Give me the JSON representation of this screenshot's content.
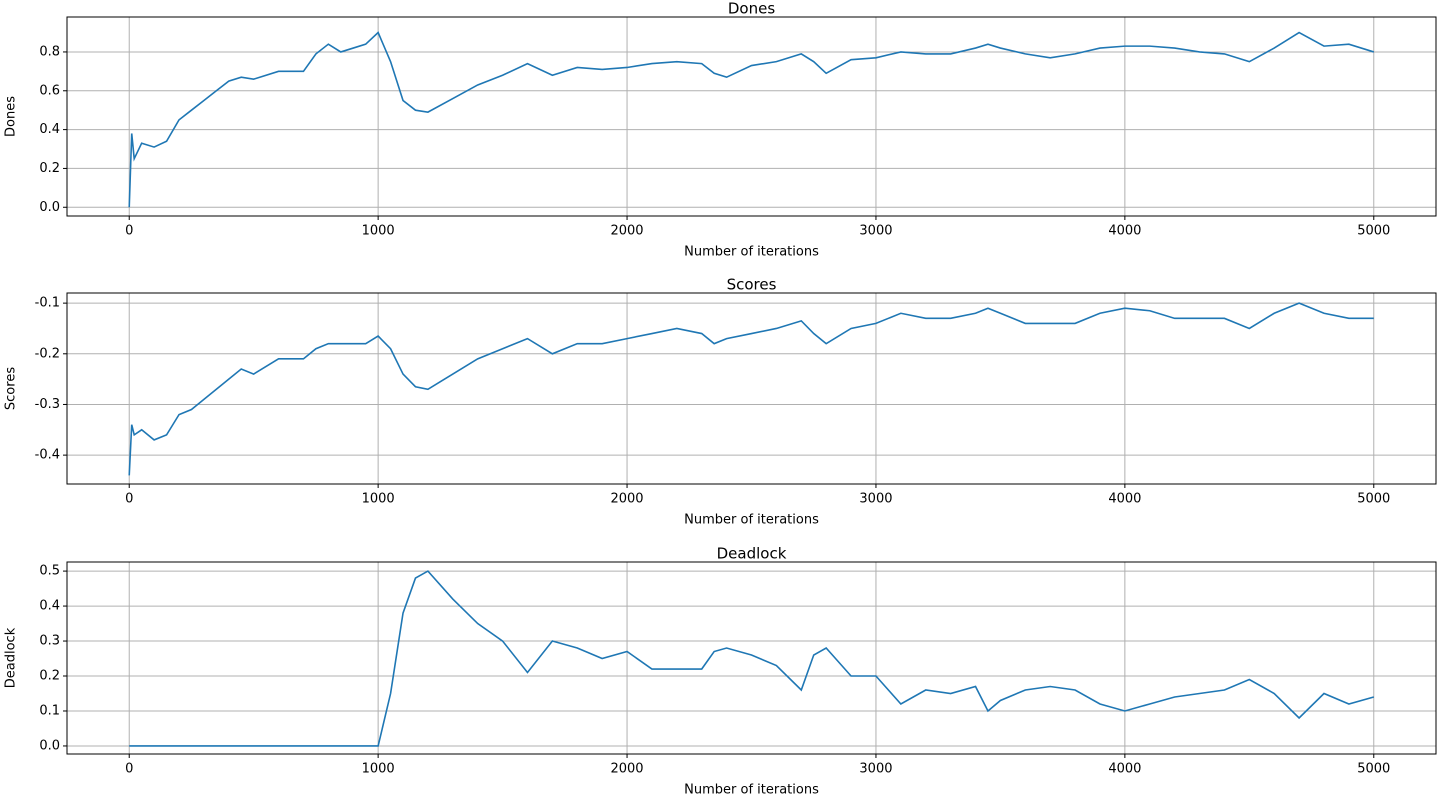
{
  "chart_data": [
    {
      "type": "line",
      "title": "Dones",
      "xlabel": "Number of iterations",
      "ylabel": "Dones",
      "color": "#1f77b4",
      "grid": true,
      "x": [
        0,
        10,
        20,
        50,
        100,
        150,
        200,
        250,
        300,
        350,
        400,
        450,
        500,
        600,
        700,
        750,
        800,
        850,
        900,
        950,
        1000,
        1050,
        1100,
        1150,
        1200,
        1300,
        1400,
        1500,
        1600,
        1700,
        1800,
        1900,
        2000,
        2100,
        2200,
        2300,
        2350,
        2400,
        2500,
        2600,
        2700,
        2750,
        2800,
        2900,
        3000,
        3100,
        3200,
        3300,
        3400,
        3450,
        3500,
        3600,
        3700,
        3800,
        3900,
        4000,
        4100,
        4200,
        4300,
        4400,
        4500,
        4600,
        4700,
        4800,
        4900,
        5000
      ],
      "values": [
        0,
        0.38,
        0.25,
        0.33,
        0.31,
        0.34,
        0.45,
        0.5,
        0.55,
        0.6,
        0.65,
        0.67,
        0.66,
        0.7,
        0.7,
        0.79,
        0.84,
        0.8,
        0.82,
        0.84,
        0.9,
        0.75,
        0.55,
        0.5,
        0.49,
        0.56,
        0.63,
        0.68,
        0.74,
        0.68,
        0.72,
        0.71,
        0.72,
        0.74,
        0.75,
        0.74,
        0.69,
        0.67,
        0.73,
        0.75,
        0.79,
        0.75,
        0.69,
        0.76,
        0.77,
        0.8,
        0.79,
        0.79,
        0.82,
        0.84,
        0.82,
        0.79,
        0.77,
        0.79,
        0.82,
        0.83,
        0.83,
        0.82,
        0.8,
        0.79,
        0.75,
        0.82,
        0.9,
        0.83,
        0.84,
        0.8
      ],
      "xlim": [
        -250,
        5250
      ],
      "xticks": [
        0,
        1000,
        2000,
        3000,
        4000,
        5000
      ],
      "ylim": [
        -0.045,
        0.98
      ],
      "yticks": [
        {
          "value": 0,
          "label": "0.0"
        },
        0.2,
        0.4,
        0.6,
        0.8
      ]
    },
    {
      "type": "line",
      "title": "Scores",
      "xlabel": "Number of iterations",
      "ylabel": "Scores",
      "color": "#1f77b4",
      "grid": true,
      "x": [
        0,
        10,
        20,
        50,
        100,
        150,
        200,
        250,
        300,
        350,
        400,
        450,
        500,
        600,
        700,
        750,
        800,
        850,
        900,
        950,
        1000,
        1050,
        1100,
        1150,
        1200,
        1300,
        1400,
        1500,
        1600,
        1700,
        1800,
        1900,
        2000,
        2100,
        2200,
        2300,
        2350,
        2400,
        2500,
        2600,
        2700,
        2750,
        2800,
        2900,
        3000,
        3100,
        3200,
        3300,
        3400,
        3450,
        3500,
        3600,
        3700,
        3800,
        3900,
        4000,
        4100,
        4200,
        4300,
        4400,
        4500,
        4600,
        4700,
        4800,
        4900,
        5000
      ],
      "values": [
        -0.44,
        -0.34,
        -0.36,
        -0.35,
        -0.37,
        -0.36,
        -0.32,
        -0.31,
        -0.29,
        -0.27,
        -0.25,
        -0.23,
        -0.24,
        -0.21,
        -0.21,
        -0.19,
        -0.18,
        -0.18,
        -0.18,
        -0.18,
        -0.165,
        -0.19,
        -0.24,
        -0.265,
        -0.27,
        -0.24,
        -0.21,
        -0.19,
        -0.17,
        -0.2,
        -0.18,
        -0.18,
        -0.17,
        -0.16,
        -0.15,
        -0.16,
        -0.18,
        -0.17,
        -0.16,
        -0.15,
        -0.135,
        -0.16,
        -0.18,
        -0.15,
        -0.14,
        -0.12,
        -0.13,
        -0.13,
        -0.12,
        -0.11,
        -0.12,
        -0.14,
        -0.14,
        -0.14,
        -0.12,
        -0.11,
        -0.115,
        -0.13,
        -0.13,
        -0.13,
        -0.15,
        -0.12,
        -0.1,
        -0.12,
        -0.13,
        -0.13
      ],
      "xlim": [
        -250,
        5250
      ],
      "xticks": [
        0,
        1000,
        2000,
        3000,
        4000,
        5000
      ],
      "ylim": [
        -0.457,
        -0.08
      ],
      "yticks": [
        -0.4,
        -0.3,
        -0.2,
        -0.1
      ]
    },
    {
      "type": "line",
      "title": "Deadlock",
      "xlabel": "Number of iterations",
      "ylabel": "Deadlock",
      "color": "#1f77b4",
      "grid": true,
      "x": [
        0,
        10,
        20,
        50,
        100,
        150,
        200,
        250,
        300,
        350,
        400,
        450,
        500,
        600,
        700,
        750,
        800,
        850,
        900,
        950,
        1000,
        1050,
        1100,
        1150,
        1200,
        1300,
        1400,
        1500,
        1600,
        1700,
        1800,
        1900,
        2000,
        2100,
        2200,
        2300,
        2350,
        2400,
        2500,
        2600,
        2700,
        2750,
        2800,
        2900,
        3000,
        3100,
        3200,
        3300,
        3400,
        3450,
        3500,
        3600,
        3700,
        3800,
        3900,
        4000,
        4100,
        4200,
        4300,
        4400,
        4500,
        4600,
        4700,
        4800,
        4900,
        5000
      ],
      "values": [
        0,
        0,
        0,
        0,
        0,
        0,
        0,
        0,
        0,
        0,
        0,
        0,
        0,
        0,
        0,
        0,
        0,
        0,
        0,
        0,
        0,
        0.15,
        0.38,
        0.48,
        0.5,
        0.42,
        0.35,
        0.3,
        0.21,
        0.3,
        0.28,
        0.25,
        0.27,
        0.22,
        0.22,
        0.22,
        0.27,
        0.28,
        0.26,
        0.23,
        0.16,
        0.26,
        0.28,
        0.2,
        0.2,
        0.12,
        0.16,
        0.15,
        0.17,
        0.1,
        0.13,
        0.16,
        0.17,
        0.16,
        0.12,
        0.1,
        0.12,
        0.14,
        0.15,
        0.16,
        0.19,
        0.15,
        0.08,
        0.15,
        0.12,
        0.14
      ],
      "xlim": [
        -250,
        5250
      ],
      "xticks": [
        0,
        1000,
        2000,
        3000,
        4000,
        5000
      ],
      "ylim": [
        -0.023,
        0.526
      ],
      "yticks": [
        {
          "value": 0,
          "label": "0.0"
        },
        0.1,
        0.2,
        0.3,
        0.4,
        0.5
      ]
    }
  ]
}
